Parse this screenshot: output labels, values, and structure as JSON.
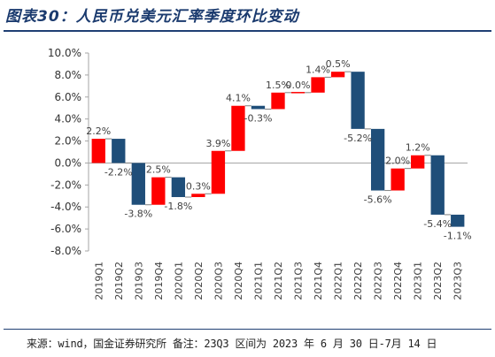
{
  "title": "图表30：人民币兑美元汇率季度环比变动",
  "source_note": "来源：wind，国金证券研究所 备注：23Q3 区间为 2023 年 6 月 30 日-7月 14 日",
  "colors": {
    "increase": "#ff0000",
    "decrease": "#1f4e79",
    "title": "#1a3a6e"
  },
  "chart_data": {
    "type": "waterfall",
    "categories": [
      "2019Q1",
      "2019Q2",
      "2019Q3",
      "2019Q4",
      "2020Q1",
      "2020Q2",
      "2020Q3",
      "2020Q4",
      "2021Q1",
      "2021Q2",
      "2021Q3",
      "2021Q4",
      "2022Q1",
      "2022Q2",
      "2022Q3",
      "2022Q4",
      "2023Q1",
      "2023Q2",
      "2023Q3"
    ],
    "values": [
      2.2,
      -2.2,
      -3.8,
      2.5,
      -1.8,
      0.3,
      3.9,
      4.1,
      -0.3,
      1.5,
      0.0,
      1.4,
      0.5,
      -5.2,
      -5.6,
      2.0,
      1.2,
      -5.4,
      -1.1
    ],
    "value_labels": [
      "2.2%",
      "-2.2%",
      "-3.8%",
      "2.5%",
      "-1.8%",
      "0.3%",
      "3.9%",
      "4.1%",
      "-0.3%",
      "1.5%",
      "0.0%",
      "1.4%",
      "0.5%",
      "-5.2%",
      "-5.6%",
      "2.0%",
      "1.2%",
      "-5.4%",
      "-1.1%"
    ],
    "y_ticks": [
      "10.0%",
      "8.0%",
      "6.0%",
      "4.0%",
      "2.0%",
      "0.0%",
      "-2.0%",
      "-4.0%",
      "-6.0%",
      "-8.0%"
    ],
    "ylim": [
      -8,
      10
    ],
    "grid": false,
    "legend": "none"
  }
}
